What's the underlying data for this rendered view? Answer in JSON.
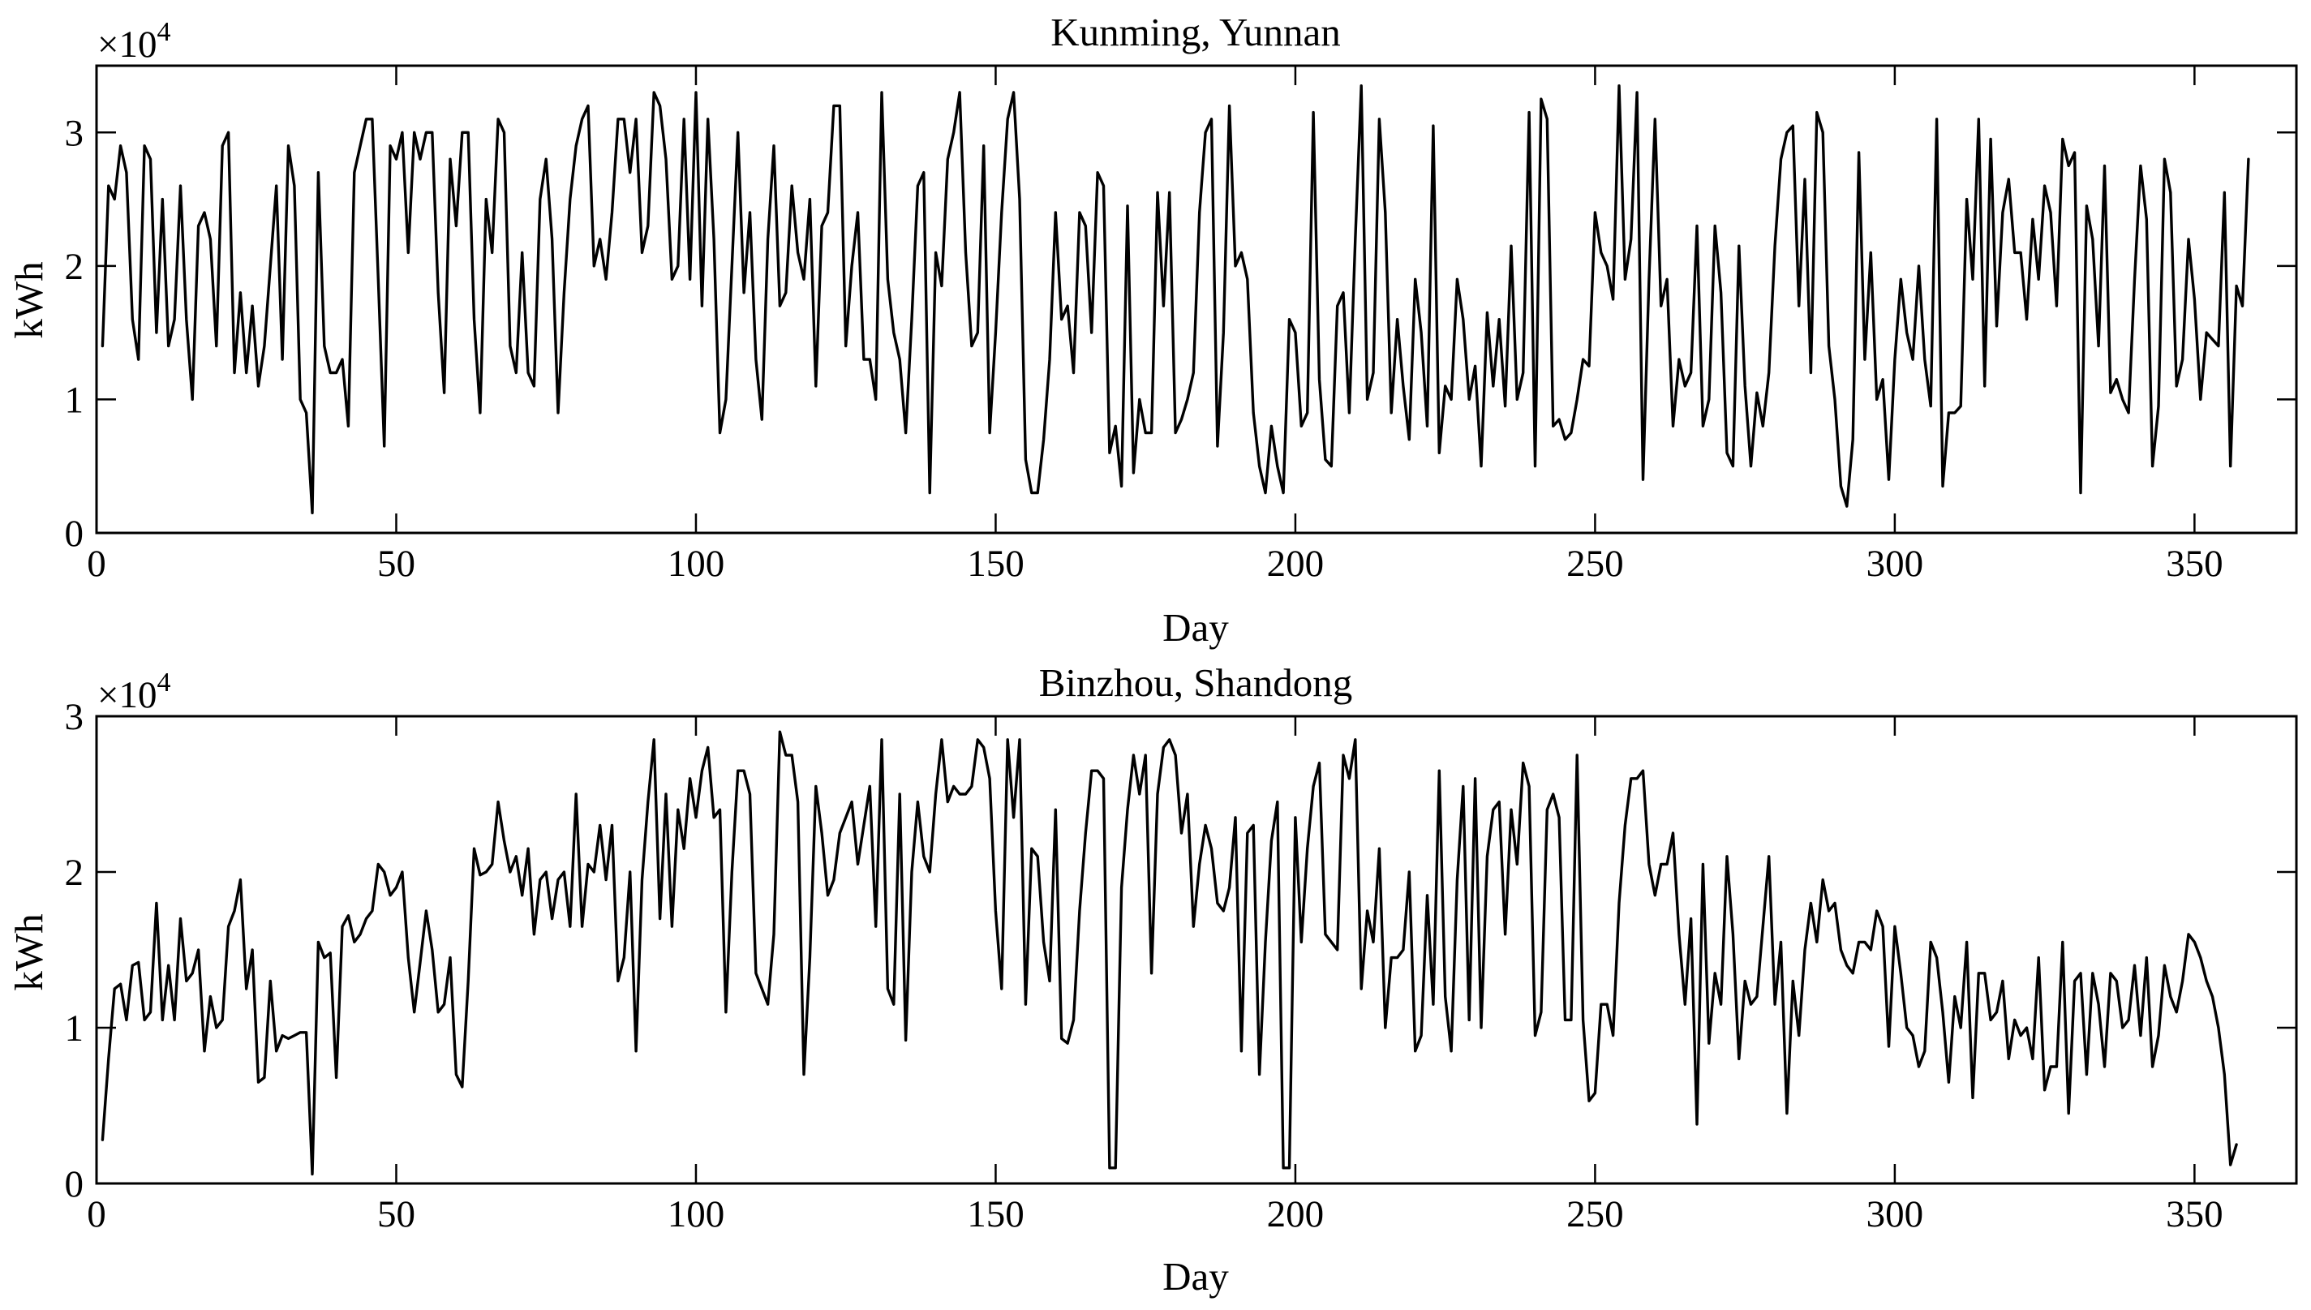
{
  "chart_data": [
    {
      "type": "line",
      "title": "Kunming, Yunnan",
      "xlabel": "Day",
      "ylabel": "kWh",
      "exponent_label": "×10",
      "exponent_power": "4",
      "xlim": [
        0,
        367
      ],
      "ylim": [
        0,
        3.5
      ],
      "xticks": [
        0,
        50,
        100,
        150,
        200,
        250,
        300,
        350
      ],
      "yticks": [
        0,
        1,
        2,
        3
      ],
      "series": [
        {
          "name": "Kunming",
          "x_start": 1,
          "values": [
            1.4,
            2.6,
            2.5,
            2.9,
            2.7,
            1.6,
            1.3,
            2.9,
            2.8,
            1.5,
            2.5,
            1.4,
            1.6,
            2.6,
            1.6,
            1.0,
            2.3,
            2.4,
            2.2,
            1.4,
            2.9,
            3.0,
            1.2,
            1.8,
            1.2,
            1.7,
            1.1,
            1.4,
            2.0,
            2.6,
            1.3,
            2.9,
            2.6,
            1.0,
            0.9,
            0.15,
            2.7,
            1.4,
            1.2,
            1.2,
            1.3,
            0.8,
            2.7,
            2.9,
            3.1,
            3.1,
            1.9,
            0.65,
            2.9,
            2.8,
            3.0,
            2.1,
            3.0,
            2.8,
            3.0,
            3.0,
            1.8,
            1.05,
            2.8,
            2.3,
            3.0,
            3.0,
            1.6,
            0.9,
            2.5,
            2.1,
            3.1,
            3.0,
            1.4,
            1.2,
            2.1,
            1.2,
            1.1,
            2.5,
            2.8,
            2.2,
            0.9,
            1.8,
            2.5,
            2.9,
            3.1,
            3.2,
            2.0,
            2.2,
            1.9,
            2.4,
            3.1,
            3.1,
            2.7,
            3.1,
            2.1,
            2.3,
            3.3,
            3.2,
            2.8,
            1.9,
            2.0,
            3.1,
            1.9,
            3.3,
            1.7,
            3.1,
            2.2,
            0.75,
            1.0,
            2.0,
            3.0,
            1.8,
            2.4,
            1.3,
            0.85,
            2.2,
            2.9,
            1.7,
            1.8,
            2.6,
            2.1,
            1.9,
            2.5,
            1.1,
            2.3,
            2.4,
            3.2,
            3.2,
            1.4,
            2.0,
            2.4,
            1.3,
            1.3,
            1.0,
            3.3,
            1.9,
            1.5,
            1.3,
            0.75,
            1.6,
            2.6,
            2.7,
            0.3,
            2.1,
            1.85,
            2.8,
            3.0,
            3.3,
            2.1,
            1.4,
            1.5,
            2.9,
            0.75,
            1.5,
            2.4,
            3.1,
            3.3,
            2.5,
            0.55,
            0.3,
            0.3,
            0.7,
            1.3,
            2.4,
            1.6,
            1.7,
            1.2,
            2.4,
            2.3,
            1.5,
            2.7,
            2.6,
            0.6,
            0.8,
            0.35,
            2.45,
            0.45,
            1.0,
            0.75,
            0.75,
            2.55,
            1.7,
            2.55,
            0.75,
            0.85,
            1.0,
            1.2,
            2.4,
            3.0,
            3.1,
            0.65,
            1.5,
            3.2,
            2.0,
            2.1,
            1.9,
            0.9,
            0.5,
            0.3,
            0.8,
            0.5,
            0.3,
            1.6,
            1.5,
            0.8,
            0.9,
            3.15,
            1.15,
            0.55,
            0.5,
            1.7,
            1.8,
            0.9,
            2.2,
            3.35,
            1.0,
            1.2,
            3.1,
            2.4,
            0.9,
            1.6,
            1.1,
            0.7,
            1.9,
            1.5,
            0.8,
            3.05,
            0.6,
            1.1,
            1.0,
            1.9,
            1.6,
            1.0,
            1.25,
            0.5,
            1.65,
            1.1,
            1.6,
            0.95,
            2.15,
            1.0,
            1.2,
            3.15,
            0.5,
            3.25,
            3.1,
            0.8,
            0.85,
            0.7,
            0.75,
            1.0,
            1.3,
            1.25,
            2.4,
            2.1,
            2.0,
            1.75,
            3.35,
            1.9,
            2.2,
            3.3,
            0.4,
            1.9,
            3.1,
            1.7,
            1.9,
            0.8,
            1.3,
            1.1,
            1.2,
            2.3,
            0.8,
            1.0,
            2.3,
            1.8,
            0.6,
            0.5,
            2.15,
            1.1,
            0.5,
            1.05,
            0.8,
            1.2,
            2.15,
            2.8,
            3.0,
            3.05,
            1.7,
            2.65,
            1.2,
            3.15,
            3.0,
            1.4,
            1.0,
            0.35,
            0.2,
            0.7,
            2.85,
            1.3,
            2.1,
            1.0,
            1.15,
            0.4,
            1.3,
            1.9,
            1.5,
            1.3,
            2.0,
            1.3,
            0.95,
            3.1,
            0.35,
            0.9,
            0.9,
            0.95,
            2.5,
            1.9,
            3.1,
            1.1,
            2.95,
            1.55,
            2.4,
            2.65,
            2.1,
            2.1,
            1.6,
            2.35,
            1.9,
            2.6,
            2.4,
            1.7,
            2.95,
            2.75,
            2.85,
            0.3,
            2.45,
            2.2,
            1.4,
            2.75,
            1.05,
            1.15,
            1.0,
            0.9,
            1.9,
            2.75,
            2.35,
            0.5,
            0.95,
            2.8,
            2.55,
            1.1,
            1.3,
            2.2,
            1.75,
            1.0,
            1.5,
            1.45,
            1.4,
            2.55,
            0.5,
            1.85,
            1.7,
            2.8
          ]
        }
      ]
    },
    {
      "type": "line",
      "title": "Binzhou, Shandong",
      "xlabel": "Day",
      "ylabel": "kWh",
      "exponent_label": "×10",
      "exponent_power": "4",
      "xlim": [
        0,
        367
      ],
      "ylim": [
        0,
        3
      ],
      "xticks": [
        0,
        50,
        100,
        150,
        200,
        250,
        300,
        350
      ],
      "yticks": [
        0,
        1,
        2,
        3
      ],
      "series": [
        {
          "name": "Binzhou",
          "x_start": 1,
          "values": [
            0.28,
            0.8,
            1.25,
            1.28,
            1.05,
            1.4,
            1.42,
            1.05,
            1.1,
            1.8,
            1.05,
            1.4,
            1.05,
            1.7,
            1.3,
            1.35,
            1.5,
            0.85,
            1.2,
            1.0,
            1.05,
            1.65,
            1.75,
            1.95,
            1.25,
            1.5,
            0.65,
            0.68,
            1.3,
            0.85,
            0.95,
            0.93,
            0.95,
            0.97,
            0.97,
            0.06,
            1.55,
            1.45,
            1.48,
            0.68,
            1.65,
            1.72,
            1.55,
            1.6,
            1.7,
            1.75,
            2.05,
            2.0,
            1.85,
            1.9,
            2.0,
            1.45,
            1.1,
            1.42,
            1.75,
            1.5,
            1.1,
            1.15,
            1.45,
            0.7,
            0.62,
            1.3,
            2.15,
            1.98,
            2.0,
            2.05,
            2.45,
            2.2,
            2.0,
            2.1,
            1.85,
            2.15,
            1.6,
            1.95,
            2.0,
            1.7,
            1.95,
            2.0,
            1.65,
            2.5,
            1.65,
            2.05,
            2.0,
            2.3,
            1.95,
            2.3,
            1.3,
            1.45,
            2.0,
            0.85,
            1.95,
            2.45,
            2.85,
            1.7,
            2.5,
            1.65,
            2.4,
            2.15,
            2.6,
            2.35,
            2.65,
            2.8,
            2.35,
            2.4,
            1.1,
            2.0,
            2.65,
            2.65,
            2.5,
            1.35,
            1.25,
            1.15,
            1.6,
            2.9,
            2.75,
            2.75,
            2.45,
            0.7,
            1.45,
            2.55,
            2.25,
            1.85,
            1.95,
            2.25,
            2.35,
            2.45,
            2.05,
            2.3,
            2.55,
            1.65,
            2.85,
            1.25,
            1.15,
            2.5,
            0.92,
            2.0,
            2.45,
            2.1,
            2.0,
            2.5,
            2.85,
            2.45,
            2.55,
            2.5,
            2.5,
            2.55,
            2.85,
            2.8,
            2.6,
            1.75,
            1.25,
            2.85,
            2.35,
            2.85,
            1.15,
            2.15,
            2.1,
            1.55,
            1.3,
            2.4,
            0.93,
            0.9,
            1.05,
            1.75,
            2.25,
            2.65,
            2.65,
            2.6,
            0.1,
            0.1,
            1.9,
            2.4,
            2.75,
            2.5,
            2.75,
            1.35,
            2.5,
            2.8,
            2.85,
            2.75,
            2.25,
            2.5,
            1.65,
            2.05,
            2.3,
            2.15,
            1.8,
            1.75,
            1.9,
            2.35,
            0.85,
            2.25,
            2.3,
            0.7,
            1.55,
            2.2,
            2.45,
            0.1,
            0.1,
            2.35,
            1.55,
            2.15,
            2.55,
            2.7,
            1.6,
            1.55,
            1.5,
            2.75,
            2.6,
            2.85,
            1.25,
            1.75,
            1.55,
            2.15,
            1.0,
            1.45,
            1.45,
            1.5,
            2.0,
            0.85,
            0.95,
            1.85,
            1.15,
            2.65,
            1.2,
            0.85,
            1.95,
            2.55,
            1.05,
            2.6,
            1.0,
            2.1,
            2.4,
            2.45,
            1.6,
            2.4,
            2.05,
            2.7,
            2.55,
            0.95,
            1.1,
            2.4,
            2.5,
            2.35,
            1.05,
            1.05,
            2.75,
            1.05,
            0.53,
            0.58,
            1.15,
            1.15,
            0.95,
            1.8,
            2.3,
            2.6,
            2.6,
            2.65,
            2.05,
            1.85,
            2.05,
            2.05,
            2.25,
            1.6,
            1.15,
            1.7,
            0.38,
            2.05,
            0.9,
            1.35,
            1.15,
            2.1,
            1.6,
            0.8,
            1.3,
            1.15,
            1.2,
            1.65,
            2.1,
            1.15,
            1.55,
            0.45,
            1.3,
            0.95,
            1.5,
            1.8,
            1.55,
            1.95,
            1.75,
            1.8,
            1.5,
            1.4,
            1.35,
            1.55,
            1.55,
            1.5,
            1.75,
            1.65,
            0.88,
            1.65,
            1.35,
            1.0,
            0.95,
            0.75,
            0.85,
            1.55,
            1.45,
            1.1,
            0.65,
            1.2,
            1.0,
            1.55,
            0.55,
            1.35,
            1.35,
            1.05,
            1.1,
            1.3,
            0.8,
            1.05,
            0.95,
            1.0,
            0.8,
            1.45,
            0.6,
            0.75,
            0.75,
            1.55,
            0.45,
            1.3,
            1.35,
            0.7,
            1.35,
            1.15,
            0.75,
            1.35,
            1.3,
            1.0,
            1.05,
            1.4,
            0.95,
            1.45,
            0.75,
            0.95,
            1.4,
            1.2,
            1.1,
            1.3,
            1.6,
            1.55,
            1.45,
            1.3,
            1.2,
            1.0,
            0.7,
            0.12,
            0.25
          ]
        }
      ]
    }
  ]
}
